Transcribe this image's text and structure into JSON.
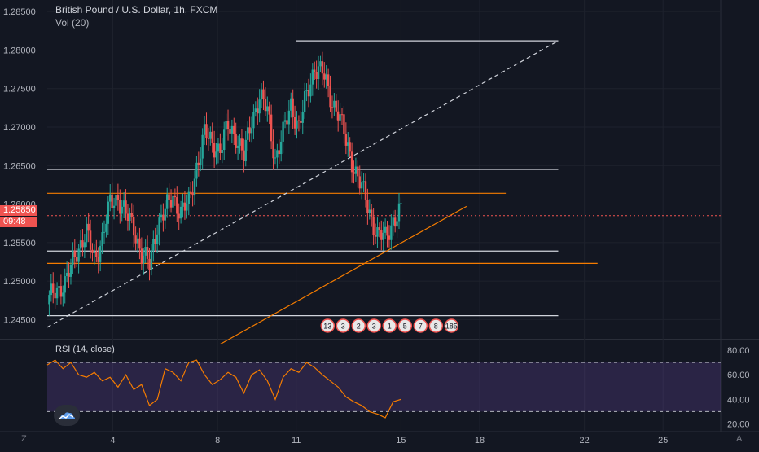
{
  "legend": {
    "symbol_title": "British Pound / U.S. Dollar, 1h, FXCM",
    "volume_label": "Vol (20)"
  },
  "rsi": {
    "label": "RSI (14, close)"
  },
  "price_tags": {
    "last_price": "1.25850",
    "countdown": "09:48"
  },
  "corner_buttons": {
    "left": "Z",
    "right": "A"
  },
  "colors": {
    "background": "#131722",
    "up": "#26a69a",
    "down": "#ef5350",
    "orange_line": "#f57c00",
    "white_line": "#d1d4dc",
    "rsi_band": "#7e57c2"
  },
  "chart_data": [
    {
      "type": "candlestick",
      "title": "British Pound / U.S. Dollar, 1h, FXCM",
      "y_ticks": [
        "1.28500",
        "1.28000",
        "1.27500",
        "1.27000",
        "1.26500",
        "1.26000",
        "1.25500",
        "1.25000",
        "1.24500"
      ],
      "y_tick_values": [
        1.285,
        1.28,
        1.275,
        1.27,
        1.265,
        1.26,
        1.255,
        1.25,
        1.245
      ],
      "ylim": [
        1.2425,
        1.2865
      ],
      "x_ticks": [
        "4",
        "8",
        "11",
        "15",
        "18",
        "22",
        "25"
      ],
      "x_tick_values": [
        4,
        8,
        11,
        15,
        18,
        22,
        25
      ],
      "xlim": [
        1.5,
        27.2
      ],
      "close_path": [
        [
          1.5,
          1.247
        ],
        [
          1.8,
          1.249
        ],
        [
          2.2,
          1.2495
        ],
        [
          2.6,
          1.254
        ],
        [
          3.0,
          1.256
        ],
        [
          3.3,
          1.253
        ],
        [
          3.6,
          1.2555
        ],
        [
          3.9,
          1.26
        ],
        [
          4.2,
          1.261
        ],
        [
          4.5,
          1.2585
        ],
        [
          4.8,
          1.257
        ],
        [
          5.1,
          1.2535
        ],
        [
          5.4,
          1.252
        ],
        [
          5.7,
          1.2575
        ],
        [
          6.0,
          1.259
        ],
        [
          6.3,
          1.261
        ],
        [
          6.6,
          1.259
        ],
        [
          6.9,
          1.26
        ],
        [
          7.2,
          1.265
        ],
        [
          7.5,
          1.269
        ],
        [
          7.8,
          1.268
        ],
        [
          8.1,
          1.267
        ],
        [
          8.4,
          1.27
        ],
        [
          8.7,
          1.269
        ],
        [
          9.0,
          1.266
        ],
        [
          9.3,
          1.271
        ],
        [
          9.6,
          1.274
        ],
        [
          9.9,
          1.272
        ],
        [
          10.2,
          1.266
        ],
        [
          10.5,
          1.269
        ],
        [
          10.8,
          1.273
        ],
        [
          11.1,
          1.27
        ],
        [
          11.4,
          1.274
        ],
        [
          11.7,
          1.278
        ],
        [
          12.0,
          1.277
        ],
        [
          12.3,
          1.274
        ],
        [
          12.6,
          1.272
        ],
        [
          12.9,
          1.268
        ],
        [
          13.2,
          1.265
        ],
        [
          13.5,
          1.262
        ],
        [
          13.8,
          1.259
        ],
        [
          14.1,
          1.256
        ],
        [
          14.4,
          1.2555
        ],
        [
          14.7,
          1.258
        ],
        [
          15.0,
          1.259
        ]
      ],
      "last_price": 1.2585,
      "horizontal_levels": [
        {
          "price": 1.2812,
          "color": "white",
          "from": 11,
          "to": 21
        },
        {
          "price": 1.2645,
          "color": "white",
          "from": 1.5,
          "to": 21
        },
        {
          "price": 1.2614,
          "color": "orange",
          "from": 1.5,
          "to": 19
        },
        {
          "price": 1.2539,
          "color": "white",
          "from": 1.5,
          "to": 21
        },
        {
          "price": 1.2523,
          "color": "orange",
          "from": 1.5,
          "to": 22.5
        },
        {
          "price": 1.2455,
          "color": "white",
          "from": 1.5,
          "to": 21
        }
      ],
      "trend_lines": [
        {
          "from": [
            1.5,
            1.244
          ],
          "to": [
            21,
            1.2812
          ],
          "color": "white",
          "style": "dashed"
        },
        {
          "from": [
            8.1,
            1.2418
          ],
          "to": [
            17.5,
            1.2597
          ],
          "color": "orange",
          "style": "solid"
        }
      ],
      "event_markers": [
        "13",
        "3",
        "2",
        "3",
        "1",
        "5",
        "7",
        "8",
        "185"
      ]
    },
    {
      "type": "line",
      "title": "RSI (14, close)",
      "y_ticks": [
        "80.00",
        "60.00",
        "40.00",
        "20.00"
      ],
      "y_tick_values": [
        80,
        60,
        40,
        20
      ],
      "ylim": [
        15,
        88
      ],
      "band": [
        30,
        70
      ],
      "xlim": [
        1.5,
        27.2
      ],
      "series": [
        {
          "x": [
            1.5,
            1.8,
            2.1,
            2.4,
            2.7,
            3.0,
            3.3,
            3.6,
            3.9,
            4.2,
            4.5,
            4.8,
            5.1,
            5.4,
            5.7,
            6.0,
            6.3,
            6.6,
            6.9,
            7.2,
            7.5,
            7.8,
            8.1,
            8.4,
            8.7,
            9.0,
            9.3,
            9.6,
            9.9,
            10.2,
            10.5,
            10.8,
            11.1,
            11.4,
            11.7,
            12.0,
            12.3,
            12.6,
            12.9,
            13.2,
            13.5,
            13.8,
            14.1,
            14.4,
            14.7,
            15.0
          ],
          "y": [
            68,
            72,
            65,
            70,
            60,
            58,
            62,
            55,
            58,
            50,
            60,
            48,
            52,
            35,
            40,
            65,
            62,
            55,
            70,
            72,
            60,
            52,
            56,
            62,
            58,
            45,
            60,
            64,
            55,
            40,
            58,
            65,
            62,
            70,
            66,
            60,
            55,
            50,
            42,
            38,
            35,
            30,
            28,
            25,
            38,
            40
          ]
        }
      ]
    }
  ]
}
